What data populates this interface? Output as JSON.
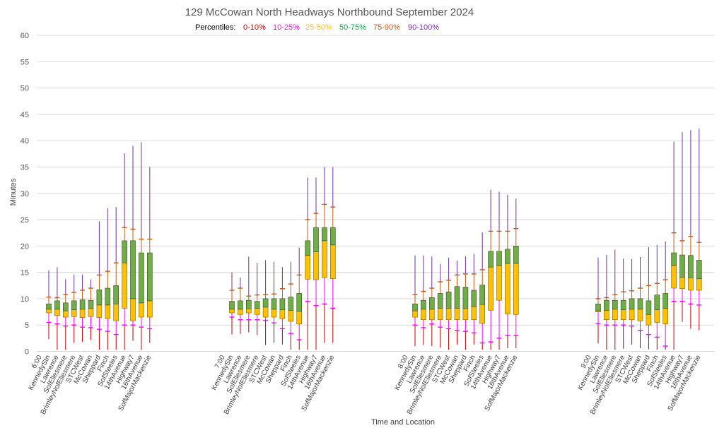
{
  "chart_data": {
    "type": "box",
    "title": "129 McCowan North Headways Northbound September 2024",
    "legend": {
      "prefix": "Percentiles:",
      "items": [
        {
          "label": "0-10%",
          "color": "#c00000"
        },
        {
          "label": "10-25%",
          "color": "#ff00ff"
        },
        {
          "label": "25-50%",
          "color": "#ffc000"
        },
        {
          "label": "50-75%",
          "color": "#00b050"
        },
        {
          "label": "75-90%",
          "color": "#c55a11"
        },
        {
          "label": "90-100%",
          "color": "#7030a0"
        }
      ],
      "placement": "top-center"
    },
    "xlabel": "Time and Location",
    "ylabel": "Minutes",
    "ylim": [
      0,
      60
    ],
    "yticks": [
      0,
      5,
      10,
      15,
      20,
      25,
      30,
      35,
      40,
      45,
      50,
      55,
      60
    ],
    "grid": true,
    "colors": {
      "whisker_low": "#c00000",
      "p10": "#ff00ff",
      "box_lower": "#ffc000",
      "box_upper": "#70ad47",
      "p90": "#c55a11",
      "whisker_high": "#7030a0",
      "grid": "#d9d9d9"
    },
    "groups": [
      {
        "time": "6:00",
        "series": [
          {
            "location": "KennedyStn",
            "min": 2.3,
            "p10": 5.5,
            "p25": 7.3,
            "median": 8.0,
            "p75": 9.0,
            "p90": 10.3,
            "max": 15.4
          },
          {
            "location": "Lawrence",
            "min": 0.3,
            "p10": 5.2,
            "p25": 6.8,
            "median": 8.0,
            "p75": 9.6,
            "p90": 10.2,
            "max": 16.0
          },
          {
            "location": "SofEllesmere",
            "min": 0.3,
            "p10": 4.8,
            "p25": 6.5,
            "median": 7.7,
            "p75": 9.2,
            "p90": 10.8,
            "max": 13.7
          },
          {
            "location": "BrimleyNofEllesmere",
            "min": 1.6,
            "p10": 5.0,
            "p25": 6.6,
            "median": 7.9,
            "p75": 9.6,
            "p90": 11.2,
            "max": 14.6
          },
          {
            "location": "STCWest",
            "min": 1.8,
            "p10": 4.6,
            "p25": 6.4,
            "median": 8.0,
            "p75": 9.8,
            "p90": 11.6,
            "max": 14.6
          },
          {
            "location": "McCowan",
            "min": 2.2,
            "p10": 4.5,
            "p25": 6.6,
            "median": 8.2,
            "p75": 9.7,
            "p90": 12.0,
            "max": 13.7
          },
          {
            "location": "Sheppard",
            "min": 0.3,
            "p10": 4.2,
            "p25": 6.4,
            "median": 8.8,
            "p75": 11.7,
            "p90": 14.5,
            "max": 24.7
          },
          {
            "location": "Finch",
            "min": 0.3,
            "p10": 3.8,
            "p25": 6.2,
            "median": 8.8,
            "p75": 12.0,
            "p90": 15.2,
            "max": 27.2
          },
          {
            "location": "SofSteeles",
            "min": 0.3,
            "p10": 3.2,
            "p25": 5.8,
            "median": 9.0,
            "p75": 12.5,
            "p90": 16.8,
            "max": 27.4
          },
          {
            "location": "14thAvenue",
            "min": 0.3,
            "p10": 5.0,
            "p25": 8.2,
            "median": 16.8,
            "p75": 21.0,
            "p90": 23.5,
            "max": 37.6
          },
          {
            "location": "Highway7",
            "min": 2.0,
            "p10": 5.0,
            "p25": 5.8,
            "median": 10.0,
            "p75": 21.0,
            "p90": 23.2,
            "max": 39.0
          },
          {
            "location": "16thAvenue",
            "min": 0.3,
            "p10": 4.6,
            "p25": 6.5,
            "median": 9.2,
            "p75": 18.7,
            "p90": 21.3,
            "max": 39.7
          },
          {
            "location": "SofMajorMackenzie",
            "min": 1.6,
            "p10": 4.3,
            "p25": 6.5,
            "median": 9.6,
            "p75": 18.7,
            "p90": 21.3,
            "max": 35.0
          }
        ]
      },
      {
        "time": "7:00",
        "series": [
          {
            "location": "KennedyStn",
            "min": 3.2,
            "p10": 6.5,
            "p25": 7.3,
            "median": 8.0,
            "p75": 9.5,
            "p90": 11.6,
            "max": 15.0
          },
          {
            "location": "Lawrence",
            "min": 3.3,
            "p10": 6.0,
            "p25": 7.0,
            "median": 8.0,
            "p75": 9.6,
            "p90": 12.0,
            "max": 14.0
          },
          {
            "location": "SofEllesmere",
            "min": 3.6,
            "p10": 6.0,
            "p25": 7.3,
            "median": 8.1,
            "p75": 9.7,
            "p90": 10.5,
            "max": 18.0
          },
          {
            "location": "BrimleyNofEllesmere",
            "min": 3.1,
            "p10": 6.0,
            "p25": 7.0,
            "median": 8.2,
            "p75": 9.5,
            "p90": 10.7,
            "max": 16.8
          },
          {
            "location": "STCWest",
            "min": 1.2,
            "p10": 5.9,
            "p25": 6.5,
            "median": 8.4,
            "p75": 10.0,
            "p90": 10.8,
            "max": 17.3
          },
          {
            "location": "McCowan",
            "min": 1.6,
            "p10": 5.4,
            "p25": 6.5,
            "median": 8.0,
            "p75": 10.0,
            "p90": 10.9,
            "max": 17.0
          },
          {
            "location": "Sheppard",
            "min": 1.3,
            "p10": 4.3,
            "p25": 6.2,
            "median": 7.9,
            "p75": 10.0,
            "p90": 11.9,
            "max": 16.0
          },
          {
            "location": "Finch",
            "min": 0.3,
            "p10": 3.4,
            "p25": 5.7,
            "median": 7.8,
            "p75": 10.3,
            "p90": 12.8,
            "max": 17.0
          },
          {
            "location": "SofSteeles",
            "min": 0.3,
            "p10": 2.2,
            "p25": 5.2,
            "median": 7.6,
            "p75": 11.0,
            "p90": 14.5,
            "max": 19.7
          },
          {
            "location": "14thAvenue",
            "min": 0.3,
            "p10": 9.5,
            "p25": 13.7,
            "median": 18.2,
            "p75": 21.0,
            "p90": 25.0,
            "max": 33.0
          },
          {
            "location": "Highway7",
            "min": 0.3,
            "p10": 8.7,
            "p25": 13.6,
            "median": 18.9,
            "p75": 23.5,
            "p90": 26.2,
            "max": 33.0
          },
          {
            "location": "16thAvenue",
            "min": 1.6,
            "p10": 9.0,
            "p25": 14.0,
            "median": 21.0,
            "p75": 23.5,
            "p90": 27.9,
            "max": 35.0
          },
          {
            "location": "SofMajorMackenzie",
            "min": 1.6,
            "p10": 8.2,
            "p25": 13.8,
            "median": 20.2,
            "p75": 23.5,
            "p90": 27.4,
            "max": 35.0
          }
        ]
      },
      {
        "time": "8:00",
        "series": [
          {
            "location": "KennedyStn",
            "min": 1.0,
            "p10": 5.0,
            "p25": 6.5,
            "median": 7.7,
            "p75": 9.0,
            "p90": 10.8,
            "max": 18.2
          },
          {
            "location": "Lawrence",
            "min": 1.2,
            "p10": 4.5,
            "p25": 6.0,
            "median": 8.0,
            "p75": 9.7,
            "p90": 11.4,
            "max": 18.2
          },
          {
            "location": "SofEllesmere",
            "min": 1.0,
            "p10": 5.2,
            "p25": 6.0,
            "median": 8.0,
            "p75": 10.2,
            "p90": 12.0,
            "max": 18.0
          },
          {
            "location": "BrimleyNofEllesmere",
            "min": 0.7,
            "p10": 4.6,
            "p25": 6.0,
            "median": 8.2,
            "p75": 11.0,
            "p90": 13.2,
            "max": 16.6
          },
          {
            "location": "STCWest",
            "min": 0.3,
            "p10": 4.3,
            "p25": 6.0,
            "median": 8.2,
            "p75": 11.3,
            "p90": 13.5,
            "max": 17.8
          },
          {
            "location": "McCowan",
            "min": 1.3,
            "p10": 4.0,
            "p25": 6.0,
            "median": 8.2,
            "p75": 12.3,
            "p90": 14.5,
            "max": 17.2
          },
          {
            "location": "Sheppard",
            "min": 0.3,
            "p10": 3.8,
            "p25": 6.0,
            "median": 8.2,
            "p75": 12.2,
            "p90": 14.7,
            "max": 18.0
          },
          {
            "location": "Finch",
            "min": 1.3,
            "p10": 3.5,
            "p25": 6.0,
            "median": 8.5,
            "p75": 11.6,
            "p90": 14.7,
            "max": 18.5
          },
          {
            "location": "SofSteeles",
            "min": 0.3,
            "p10": 1.6,
            "p25": 5.3,
            "median": 8.9,
            "p75": 12.6,
            "p90": 15.5,
            "max": 22.6
          },
          {
            "location": "14thAvenue",
            "min": 0.3,
            "p10": 1.8,
            "p25": 7.8,
            "median": 16.0,
            "p75": 19.0,
            "p90": 22.8,
            "max": 30.7
          },
          {
            "location": "Highway7",
            "min": 0.3,
            "p10": 2.5,
            "p25": 9.7,
            "median": 16.3,
            "p75": 19.0,
            "p90": 22.8,
            "max": 30.3
          },
          {
            "location": "16thAvenue",
            "min": 0.6,
            "p10": 3.0,
            "p25": 7.1,
            "median": 16.7,
            "p75": 19.4,
            "p90": 22.8,
            "max": 29.7
          },
          {
            "location": "SofMajorMackenzie",
            "min": 0.6,
            "p10": 3.0,
            "p25": 7.0,
            "median": 16.7,
            "p75": 20.0,
            "p90": 23.3,
            "max": 29.0
          }
        ]
      },
      {
        "time": "9:00",
        "series": [
          {
            "location": "KennedyStn",
            "min": 1.5,
            "p10": 5.3,
            "p25": 7.5,
            "median": 7.7,
            "p75": 9.0,
            "p90": 10.0,
            "max": 17.8
          },
          {
            "location": "Lawrence",
            "min": 0.3,
            "p10": 5.0,
            "p25": 6.0,
            "median": 7.8,
            "p75": 9.7,
            "p90": 10.2,
            "max": 18.3
          },
          {
            "location": "SofEllesmere",
            "min": 0.3,
            "p10": 5.0,
            "p25": 6.0,
            "median": 8.0,
            "p75": 9.7,
            "p90": 10.8,
            "max": 19.3
          },
          {
            "location": "BrimleyNofEllesmere",
            "min": 0.5,
            "p10": 5.0,
            "p25": 6.0,
            "median": 7.9,
            "p75": 9.7,
            "p90": 11.3,
            "max": 17.6
          },
          {
            "location": "STCWest",
            "min": 1.3,
            "p10": 4.8,
            "p25": 6.0,
            "median": 8.0,
            "p75": 10.0,
            "p90": 11.5,
            "max": 17.5
          },
          {
            "location": "McCowan",
            "min": 0.6,
            "p10": 4.0,
            "p25": 5.8,
            "median": 8.0,
            "p75": 10.0,
            "p90": 12.0,
            "max": 17.9
          },
          {
            "location": "Sheppard",
            "min": 0.4,
            "p10": 3.2,
            "p25": 5.0,
            "median": 7.0,
            "p75": 9.6,
            "p90": 12.5,
            "max": 19.8
          },
          {
            "location": "Finch",
            "min": 0.3,
            "p10": 2.7,
            "p25": 5.5,
            "median": 7.9,
            "p75": 10.7,
            "p90": 12.9,
            "max": 20.2
          },
          {
            "location": "SofSteeles",
            "min": 0.3,
            "p10": 1.0,
            "p25": 5.2,
            "median": 8.2,
            "p75": 11.0,
            "p90": 13.6,
            "max": 20.9
          },
          {
            "location": "14thAvenue",
            "min": 0.3,
            "p10": 9.5,
            "p25": 12.0,
            "median": 16.3,
            "p75": 18.7,
            "p90": 22.5,
            "max": 39.8
          },
          {
            "location": "Highway7",
            "min": 5.6,
            "p10": 9.5,
            "p25": 11.9,
            "median": 14.1,
            "p75": 18.3,
            "p90": 21.0,
            "max": 41.6
          },
          {
            "location": "16thAvenue",
            "min": 4.3,
            "p10": 9.0,
            "p25": 11.6,
            "median": 14.0,
            "p75": 18.2,
            "p90": 21.8,
            "max": 42.0
          },
          {
            "location": "SofMajorMackenzie",
            "min": 4.0,
            "p10": 8.8,
            "p25": 11.6,
            "median": 13.8,
            "p75": 17.3,
            "p90": 20.7,
            "max": 42.3
          }
        ]
      }
    ]
  }
}
